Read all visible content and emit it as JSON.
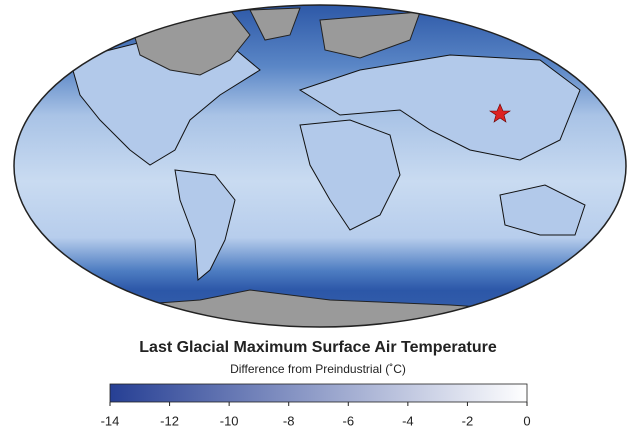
{
  "map": {
    "title": "Last Glacial Maximum Surface Air Temperature",
    "subtitle": "Difference from Preindustrial (˚C)",
    "colorbar": {
      "lim": [
        -14,
        0
      ],
      "ticks": [
        -14,
        -12,
        -10,
        -8,
        -6,
        -4,
        -2,
        0
      ],
      "colors": [
        "#263f94",
        "#ffffff"
      ]
    }
  }
}
